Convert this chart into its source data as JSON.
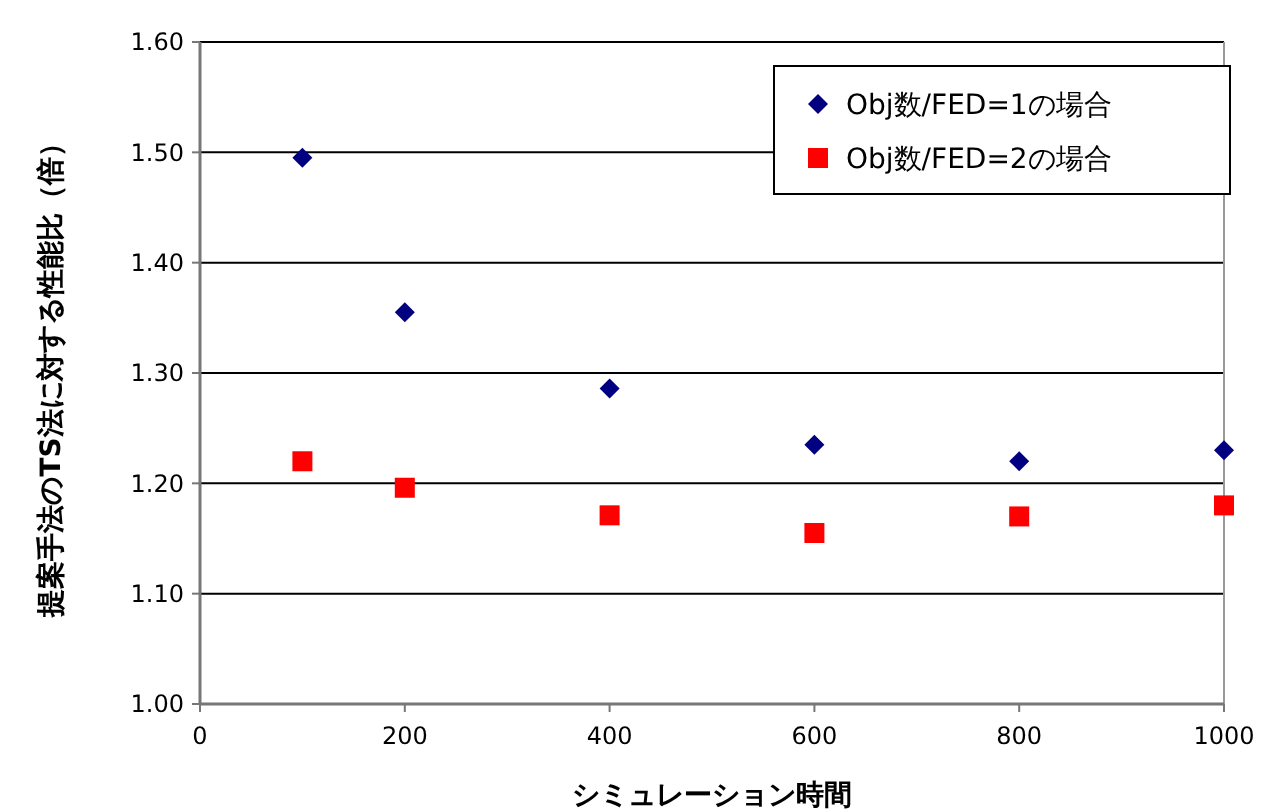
{
  "chart_data": {
    "type": "scatter",
    "xlabel": "シミュレーション時間",
    "ylabel": "提案手法のTS法に対する性能比（倍）",
    "x": [
      100,
      200,
      400,
      600,
      800,
      1000
    ],
    "series": [
      {
        "name": "Obj数/FED=1の場合",
        "color": "#000080",
        "marker": "diamond",
        "values": [
          1.495,
          1.355,
          1.286,
          1.235,
          1.22,
          1.23
        ]
      },
      {
        "name": "Obj数/FED=2の場合",
        "color": "#ff0000",
        "marker": "square",
        "values": [
          1.22,
          1.196,
          1.171,
          1.155,
          1.17,
          1.18
        ]
      }
    ],
    "xlim": [
      0,
      1000
    ],
    "xticks": [
      0,
      200,
      400,
      600,
      800,
      1000
    ],
    "ylim": [
      1,
      1.6
    ],
    "yticks": [
      {
        "value": 1,
        "label": "1.00"
      },
      {
        "value": 1.1,
        "label": "1.10"
      },
      {
        "value": 1.2,
        "label": "1.20"
      },
      {
        "value": 1.3,
        "label": "1.30"
      },
      {
        "value": 1.4,
        "label": "1.40"
      },
      {
        "value": 1.5,
        "label": "1.50"
      },
      {
        "value": 1.6,
        "label": "1.60"
      }
    ],
    "grid": "y",
    "legend": "top right"
  }
}
